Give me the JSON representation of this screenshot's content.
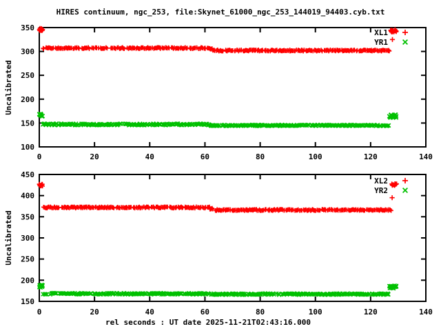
{
  "title": "HIRES continuum, ngc_253, file:Skynet_61000_ngc_253_144019_94403.cyb.txt",
  "xlabel": "rel seconds : UT date 2025-11-21T02:43:16.000",
  "colors": {
    "series_red": "#ff0000",
    "series_green": "#00c000",
    "axis": "#000000",
    "background": "#ffffff"
  },
  "chart_data": [
    {
      "type": "scatter",
      "panel": "top",
      "ylabel": "Uncalibrated",
      "xlim": [
        0,
        140
      ],
      "ylim": [
        100,
        350
      ],
      "xticks": [
        0,
        20,
        40,
        60,
        80,
        100,
        120,
        140
      ],
      "yticks": [
        100,
        150,
        200,
        250,
        300,
        350
      ],
      "grid": false,
      "legend_position": "top-right",
      "series": [
        {
          "name": "XL1",
          "marker": "plus",
          "color": "#ff0000",
          "segments": [
            {
              "x0": 0.0,
              "x1": 1.2,
              "y": 346,
              "spread": 2.5,
              "dx": 0.1
            },
            {
              "x0": 1.4,
              "x1": 61.7,
              "y": 307,
              "spread": 1.4,
              "dx": 0.3
            },
            {
              "x0": 61.8,
              "x1": 62.9,
              "y": 304.5,
              "spread": 1.8,
              "dx": 0.25
            },
            {
              "x0": 63.0,
              "x1": 127.0,
              "y": 302,
              "spread": 1.4,
              "dx": 0.3
            },
            {
              "x0": 127.2,
              "x1": 129.4,
              "y": 343,
              "spread": 3.0,
              "dx": 0.12
            }
          ],
          "outliers": [
            [
              127.9,
              325
            ]
          ]
        },
        {
          "name": "YR1",
          "marker": "cross",
          "color": "#00c000",
          "segments": [
            {
              "x0": 0.0,
              "x1": 1.2,
              "y": 167,
              "spread": 3.0,
              "dx": 0.1
            },
            {
              "x0": 1.4,
              "x1": 61.7,
              "y": 147,
              "spread": 1.6,
              "dx": 0.3
            },
            {
              "x0": 62.0,
              "x1": 126.6,
              "y": 145,
              "spread": 1.2,
              "dx": 0.3
            },
            {
              "x0": 126.8,
              "x1": 129.4,
              "y": 164,
              "spread": 3.5,
              "dx": 0.12
            }
          ],
          "outliers": []
        }
      ]
    },
    {
      "type": "scatter",
      "panel": "bottom",
      "ylabel": "Uncalibrated",
      "xlim": [
        0,
        140
      ],
      "ylim": [
        150,
        450
      ],
      "xticks": [
        0,
        20,
        40,
        60,
        80,
        100,
        120,
        140
      ],
      "yticks": [
        150,
        200,
        250,
        300,
        350,
        400,
        450
      ],
      "grid": false,
      "legend_position": "top-right",
      "series": [
        {
          "name": "XL2",
          "marker": "plus",
          "color": "#ff0000",
          "segments": [
            {
              "x0": 0.0,
              "x1": 1.2,
              "y": 425,
              "spread": 2.5,
              "dx": 0.1
            },
            {
              "x0": 1.4,
              "x1": 61.7,
              "y": 372,
              "spread": 1.6,
              "dx": 0.3
            },
            {
              "x0": 61.8,
              "x1": 62.9,
              "y": 369,
              "spread": 2.0,
              "dx": 0.25
            },
            {
              "x0": 63.0,
              "x1": 127.6,
              "y": 366,
              "spread": 1.6,
              "dx": 0.3
            },
            {
              "x0": 127.7,
              "x1": 129.4,
              "y": 426,
              "spread": 2.5,
              "dx": 0.12
            }
          ],
          "outliers": [
            [
              127.8,
              395
            ]
          ]
        },
        {
          "name": "YR2",
          "marker": "cross",
          "color": "#00c000",
          "segments": [
            {
              "x0": 0.0,
              "x1": 1.2,
              "y": 186,
              "spread": 3.5,
              "dx": 0.1
            },
            {
              "x0": 1.4,
              "x1": 61.7,
              "y": 168,
              "spread": 1.6,
              "dx": 0.3
            },
            {
              "x0": 62.0,
              "x1": 126.6,
              "y": 167,
              "spread": 1.6,
              "dx": 0.3
            },
            {
              "x0": 126.8,
              "x1": 129.4,
              "y": 184,
              "spread": 3.5,
              "dx": 0.12
            }
          ],
          "outliers": []
        }
      ]
    }
  ]
}
